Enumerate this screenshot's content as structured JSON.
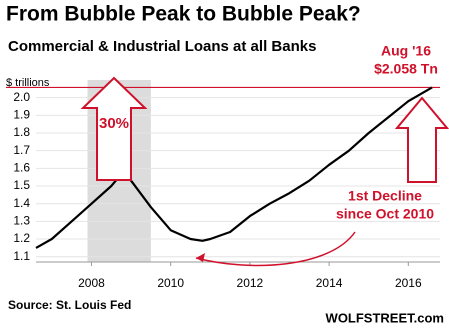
{
  "chart_data": {
    "type": "line",
    "title": "From Bubble Peak to Bubble Peak?",
    "subtitle": "Commercial & Industrial Loans at all Banks",
    "y_unit": "$ trillions",
    "x": [
      2006.6,
      2007.0,
      2007.5,
      2008.0,
      2008.5,
      2008.8,
      2009.0,
      2009.5,
      2010.0,
      2010.5,
      2010.8,
      2011.0,
      2011.5,
      2012.0,
      2012.5,
      2013.0,
      2013.5,
      2014.0,
      2014.5,
      2015.0,
      2015.5,
      2016.0,
      2016.6
    ],
    "values": [
      1.15,
      1.2,
      1.3,
      1.4,
      1.5,
      1.58,
      1.53,
      1.38,
      1.25,
      1.2,
      1.19,
      1.2,
      1.24,
      1.33,
      1.4,
      1.46,
      1.53,
      1.62,
      1.7,
      1.8,
      1.89,
      1.98,
      2.058
    ],
    "color": "#000000",
    "xlim": [
      2006.6,
      2016.8
    ],
    "xticks": [
      2008,
      2010,
      2012,
      2014,
      2016
    ],
    "ylim": [
      1.07,
      2.1
    ],
    "yticks": [
      1.1,
      1.2,
      1.3,
      1.4,
      1.5,
      1.6,
      1.7,
      1.8,
      1.9,
      {
        "value": 2,
        "label": "2.0"
      }
    ],
    "grid": true,
    "shaded_region": [
      2007.9,
      2009.5
    ],
    "reference_line": 2.058,
    "annotations": {
      "peak_date": "Aug '16",
      "peak_value": "$2.058 Tn",
      "change": "30%",
      "decline_1": "1st Decline",
      "decline_2": "since Oct 2010"
    },
    "source": "Source: St. Louis Fed",
    "watermark": "WOLFSTREET.com"
  }
}
